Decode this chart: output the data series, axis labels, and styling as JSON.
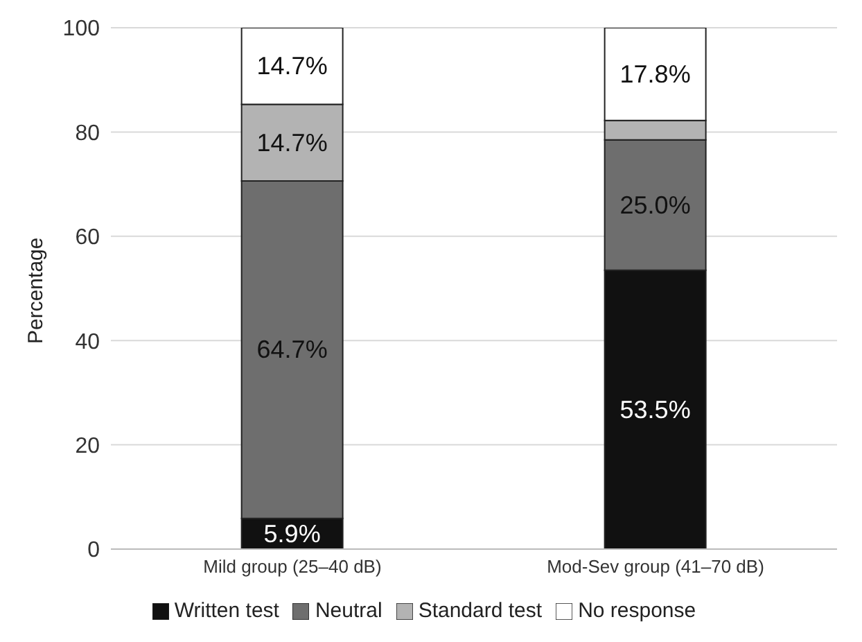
{
  "chart_data": {
    "type": "bar",
    "stacked": true,
    "ylabel": "Percentage",
    "categories": [
      "Mild group (25–40 dB)",
      "Mod-Sev group (41–70 dB)"
    ],
    "series": [
      {
        "name": "Written test",
        "color": "#111111",
        "values": [
          5.9,
          53.5
        ],
        "value_labels": [
          "5.9%",
          "53.5%"
        ]
      },
      {
        "name": "Neutral",
        "color": "#6e6e6e",
        "values": [
          64.7,
          25.0
        ],
        "value_labels": [
          "64.7%",
          "25.0%"
        ]
      },
      {
        "name": "Standard test",
        "color": "#b3b3b3",
        "values": [
          14.7,
          3.7
        ],
        "value_labels": [
          "14.7%",
          null
        ]
      },
      {
        "name": "No response",
        "color": "#ffffff",
        "values": [
          14.7,
          17.8
        ],
        "value_labels": [
          "14.7%",
          "17.8%"
        ]
      }
    ],
    "ylim": [
      0,
      100
    ],
    "yticks": [
      0,
      20,
      40,
      60,
      80,
      100
    ],
    "grid": "y",
    "legend": "bottom"
  }
}
